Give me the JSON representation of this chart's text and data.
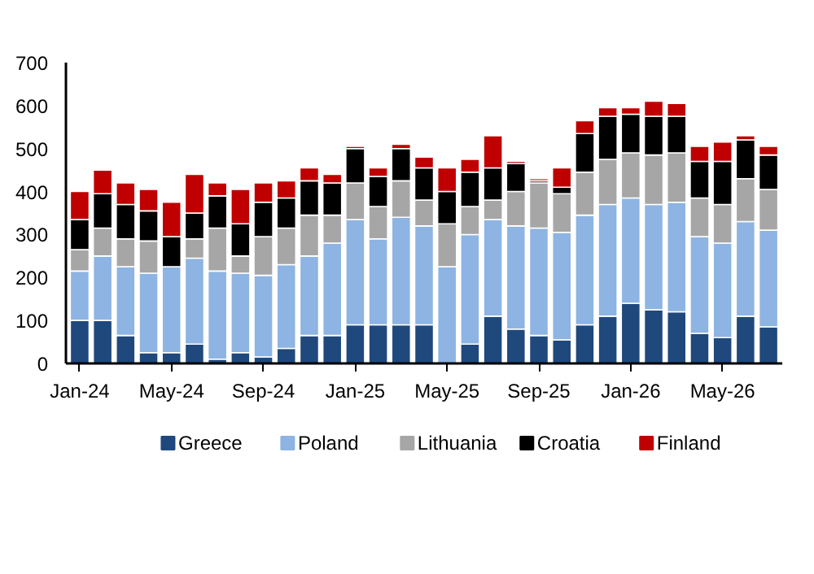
{
  "chart_data": {
    "type": "bar",
    "stacked": true,
    "categories": [
      "Jan-24",
      null,
      null,
      null,
      "May-24",
      null,
      null,
      null,
      "Sep-24",
      null,
      null,
      null,
      "Jan-25",
      null,
      null,
      null,
      "May-25",
      null,
      null,
      null,
      "Sep-25",
      null,
      null,
      null,
      "Jan-26",
      null,
      null,
      null,
      "May-26",
      null,
      null
    ],
    "series": [
      {
        "name": "Greece",
        "color": "#1f497d",
        "values": [
          100,
          100,
          65,
          25,
          25,
          45,
          10,
          25,
          15,
          35,
          65,
          65,
          90,
          90,
          90,
          90,
          0,
          45,
          110,
          80,
          65,
          55,
          90,
          110,
          140,
          125,
          120,
          70,
          60,
          110,
          85
        ]
      },
      {
        "name": "Poland",
        "color": "#8db4e2",
        "values": [
          115,
          150,
          160,
          185,
          200,
          200,
          205,
          185,
          190,
          195,
          185,
          215,
          245,
          200,
          250,
          230,
          225,
          255,
          225,
          240,
          250,
          250,
          255,
          260,
          245,
          245,
          255,
          225,
          220,
          220,
          225
        ]
      },
      {
        "name": "Lithuania",
        "color": "#a6a6a6",
        "values": [
          50,
          65,
          65,
          75,
          0,
          45,
          100,
          40,
          90,
          85,
          95,
          65,
          85,
          75,
          85,
          60,
          100,
          65,
          45,
          80,
          105,
          90,
          100,
          105,
          105,
          115,
          115,
          90,
          90,
          100,
          95
        ]
      },
      {
        "name": "Croatia",
        "color": "#000000",
        "values": [
          70,
          80,
          80,
          70,
          70,
          60,
          75,
          75,
          80,
          70,
          80,
          75,
          80,
          70,
          75,
          75,
          75,
          80,
          75,
          65,
          5,
          15,
          90,
          100,
          90,
          90,
          85,
          85,
          100,
          90,
          80
        ]
      },
      {
        "name": "Finland",
        "color": "#c00000",
        "values": [
          65,
          55,
          50,
          50,
          80,
          90,
          30,
          80,
          45,
          40,
          30,
          20,
          5,
          20,
          10,
          25,
          55,
          30,
          75,
          5,
          5,
          45,
          30,
          20,
          15,
          35,
          30,
          35,
          45,
          10,
          20
        ]
      }
    ],
    "ylim": [
      0,
      700
    ],
    "yticks": [
      0,
      100,
      200,
      300,
      400,
      500,
      600,
      700
    ],
    "grid": false,
    "legend": "bottom"
  }
}
